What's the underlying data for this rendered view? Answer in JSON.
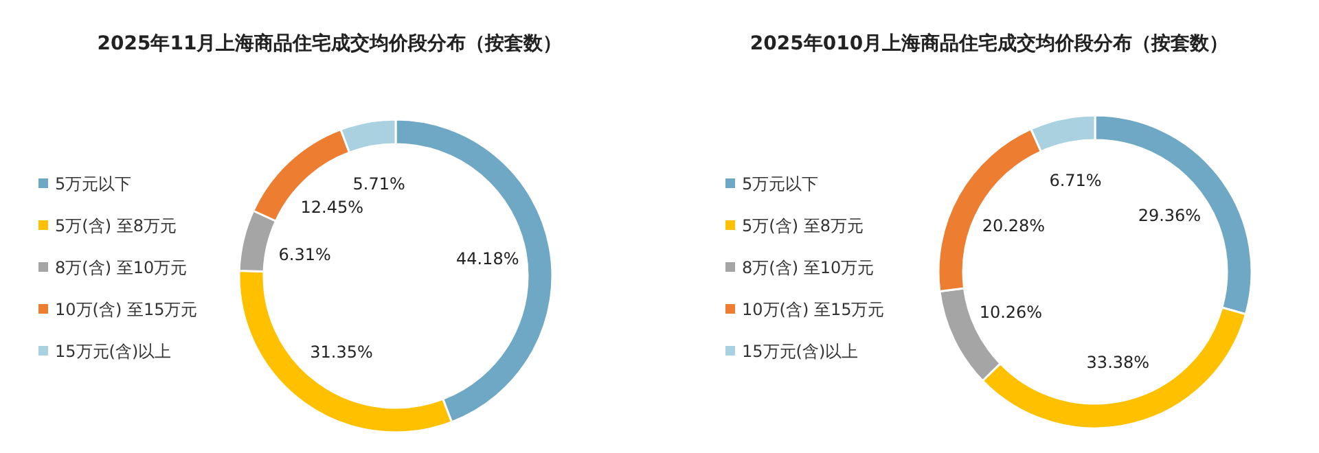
{
  "chart_data": [
    {
      "type": "donut",
      "title": "2025年11月上海商品住宅成交均价段分布（按套数）",
      "categories": [
        "5万元以下",
        "5万(含) 至8万元",
        "8万(含) 至10万元",
        "10万(含) 至15万元",
        "15万元(含)以上"
      ],
      "values": [
        44.18,
        31.35,
        6.31,
        12.45,
        5.71
      ],
      "value_labels": [
        "44.18%",
        "31.35%",
        "6.31%",
        "12.45%",
        "5.71%"
      ],
      "colors": [
        "#6fa8c4",
        "#ffc000",
        "#a5a5a5",
        "#ed7d31",
        "#a9d1e0"
      ],
      "legend": "left"
    },
    {
      "type": "donut",
      "title": "2025年010月上海商品住宅成交均价段分布（按套数）",
      "categories": [
        "5万元以下",
        "5万(含) 至8万元",
        "8万(含) 至10万元",
        "10万(含) 至15万元",
        "15万元(含)以上"
      ],
      "values": [
        29.36,
        33.38,
        10.26,
        20.28,
        6.71
      ],
      "value_labels": [
        "29.36%",
        "33.38%",
        "10.26%",
        "20.28%",
        "6.71%"
      ],
      "colors": [
        "#6fa8c4",
        "#ffc000",
        "#a5a5a5",
        "#ed7d31",
        "#a9d1e0"
      ],
      "legend": "left"
    }
  ]
}
